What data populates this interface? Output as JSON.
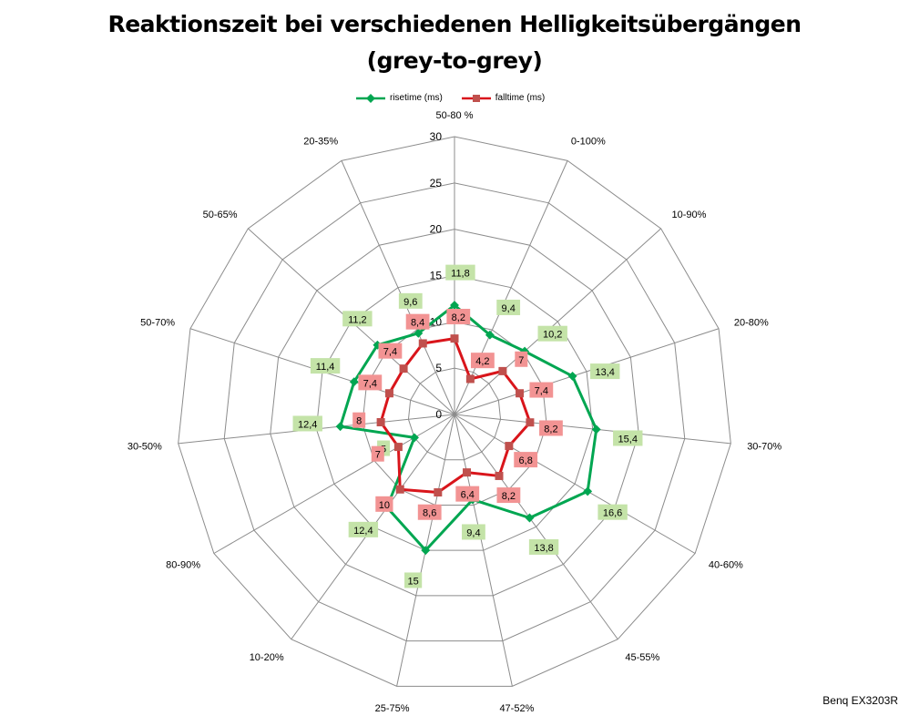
{
  "title": {
    "line1": "Reaktionszeit bei verschiedenen Helligkeitsübergängen",
    "line2": "(grey-to-grey)"
  },
  "credit": "Benq EX3203R",
  "colors": {
    "risetime": "#00a651",
    "falltime": "#d9151b",
    "falltime_marker": "#c0504d",
    "risetime_label_bg": "#c4e3a8",
    "falltime_label_bg": "#f29393",
    "grid": "#8c8c8c"
  },
  "chart_data": {
    "type": "radar",
    "categories": [
      "50-80 %",
      "0-100%",
      "10-90%",
      "20-80%",
      "30-70%",
      "40-60%",
      "45-55%",
      "47-52%",
      "25-75%",
      "10-20%",
      "80-90%",
      "30-50%",
      "50-70%",
      "50-65%",
      "20-35%"
    ],
    "series": [
      {
        "name": "risetime (ms)",
        "values": [
          11.8,
          9.4,
          10.2,
          13.4,
          15.4,
          16.6,
          13.8,
          9.4,
          15,
          12.4,
          5,
          12.4,
          11.4,
          11.2,
          9.6
        ]
      },
      {
        "name": "falltime (ms)",
        "values": [
          8.2,
          4.2,
          7,
          7.4,
          8.2,
          6.8,
          8.2,
          6.4,
          8.6,
          10,
          7,
          8,
          7.4,
          7.4,
          8.4
        ]
      }
    ],
    "data_labels": {
      "risetime": [
        "11,8",
        "9,4",
        "10,2",
        "13,4",
        "15,4",
        "16,6",
        "13,8",
        "9,4",
        "15",
        "12,4",
        "5",
        "12,4",
        "11,4",
        "11,2",
        "9,6"
      ],
      "falltime": [
        "8,2",
        "4,2",
        "7",
        "7,4",
        "8,2",
        "6,8",
        "8,2",
        "6,4",
        "8,6",
        "10",
        "7",
        "8",
        "7,4",
        "7,4",
        "8,4"
      ]
    },
    "radial_axis": {
      "min": 0,
      "max": 30,
      "step": 5,
      "tick_labels": [
        "0",
        "5",
        "10",
        "15",
        "20",
        "25",
        "30"
      ]
    },
    "grid": true,
    "legend_position": "top"
  }
}
